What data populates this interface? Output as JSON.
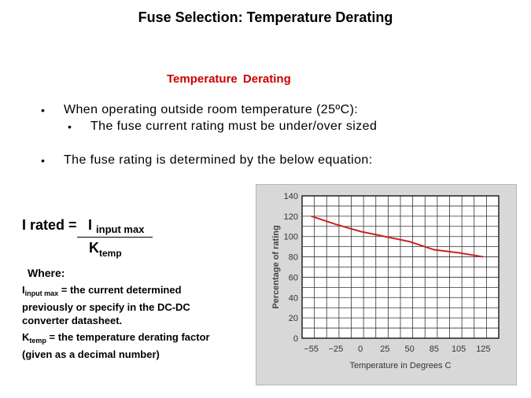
{
  "slide": {
    "title": "Fuse Selection: Temperature Derating",
    "subtitle": "Temperature Derating",
    "bullets": [
      {
        "marker": "•",
        "text": "When operating outside room temperature (25ºC):"
      },
      {
        "marker": "•",
        "text": "The fuse current rating must be under/over sized"
      },
      {
        "marker": "•",
        "text": "The fuse rating is determined by the below equation:"
      }
    ]
  },
  "equation": {
    "lhs": "I rated =",
    "numerator_main": "I",
    "numerator_sub": "input max",
    "denominator_main": "K",
    "denominator_sub": "temp",
    "where_label": "Where:",
    "def1_main": "I",
    "def1_sub": "input max",
    "def1_text_line1": " = the current determined",
    "def1_text_line2": "previously or specify in the DC-DC",
    "def1_text_line3": "converter datasheet.",
    "def2_main": "K",
    "def2_sub": "temp",
    "def2_text_line1": " = the temperature derating factor",
    "def2_text_line2": "(given as a decimal number)"
  },
  "chart_data": {
    "type": "line",
    "title": "",
    "xlabel": "Temperature in Degrees C",
    "ylabel": "Percentage of rating",
    "x_ticks": [
      -55,
      -25,
      0,
      25,
      50,
      85,
      105,
      125
    ],
    "y_ticks": [
      0,
      20,
      40,
      60,
      80,
      100,
      120,
      140
    ],
    "ylim": [
      0,
      140
    ],
    "grid": true,
    "line_color": "#cc2222",
    "series": [
      {
        "x": [
          -55,
          -25,
          0,
          25,
          50,
          85,
          105,
          125
        ],
        "values": [
          120,
          112,
          105,
          100,
          95,
          87,
          84,
          80
        ]
      }
    ]
  }
}
